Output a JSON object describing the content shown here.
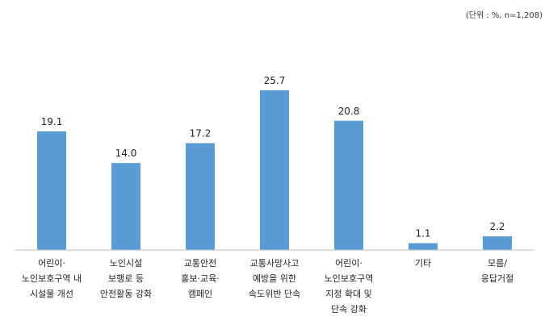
{
  "unit_note": "(단위 : %,  n=1,208)",
  "chart_data": {
    "type": "bar",
    "categories": [
      [
        "어린이·",
        "노인보호구역 내",
        "시설물 개선"
      ],
      [
        "노인시설",
        "보행로 등",
        "안전활동 강화"
      ],
      [
        "교통안전",
        "홍보·교육·",
        "캠페인"
      ],
      [
        "교통사망사고",
        "예방을 위한",
        "속도위반 단속"
      ],
      [
        "어린이·",
        "노인보호구역",
        "지정 확대 및",
        "단속 강화"
      ],
      [
        "기타"
      ],
      [
        "모름/",
        "응답거절"
      ]
    ],
    "values": [
      19.1,
      14.0,
      17.2,
      25.7,
      20.8,
      1.1,
      2.2
    ],
    "value_labels": [
      "19.1",
      "14.0",
      "17.2",
      "25.7",
      "20.8",
      "1.1",
      "2.2"
    ],
    "ylim": [
      0,
      25.7
    ],
    "bar_color": "#5b9bd5",
    "baseline_color": "#bfbfbf",
    "grid": false,
    "legend": "none"
  }
}
